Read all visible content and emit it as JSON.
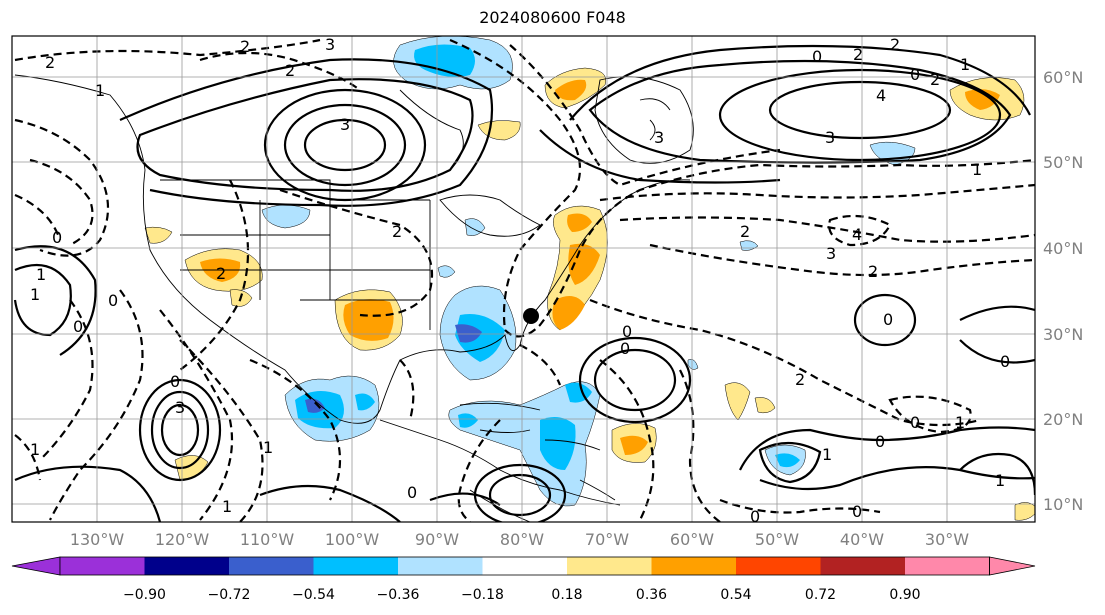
{
  "title": "2024080600 F048",
  "lon_labels": [
    "130°W",
    "120°W",
    "110°W",
    "100°W",
    "90°W",
    "80°W",
    "70°W",
    "60°W",
    "50°W",
    "40°W",
    "30°W"
  ],
  "lat_labels": [
    "60°N",
    "50°N",
    "40°N",
    "30°N",
    "20°N",
    "10°N"
  ],
  "colorbar": {
    "colors": [
      "#9b30d9",
      "#00008b",
      "#3a5fcd",
      "#00bfff",
      "#b0e2ff",
      "#ffffff",
      "#ffe88c",
      "#ffa000",
      "#ff4500",
      "#b22222",
      "#ff88aa"
    ],
    "tick_labels": [
      "−0.90",
      "−0.72",
      "−0.54",
      "−0.36",
      "−0.18",
      "0.18",
      "0.36",
      "0.54",
      "0.72",
      "0.90"
    ]
  },
  "contour_labels": [
    "2",
    "3",
    "2",
    "2",
    "1",
    "3",
    "4",
    "3",
    "3",
    "1",
    "0",
    "2",
    "2",
    "2",
    "0",
    "1",
    "2",
    "2",
    "4",
    "3",
    "2",
    "1",
    "0",
    "0",
    "0",
    "1",
    "0",
    "2",
    "0",
    "3",
    "1",
    "0",
    "1",
    "1",
    "0",
    "0",
    "1",
    "0",
    "1",
    "0",
    "0",
    "2",
    "0",
    "0",
    "1"
  ]
}
